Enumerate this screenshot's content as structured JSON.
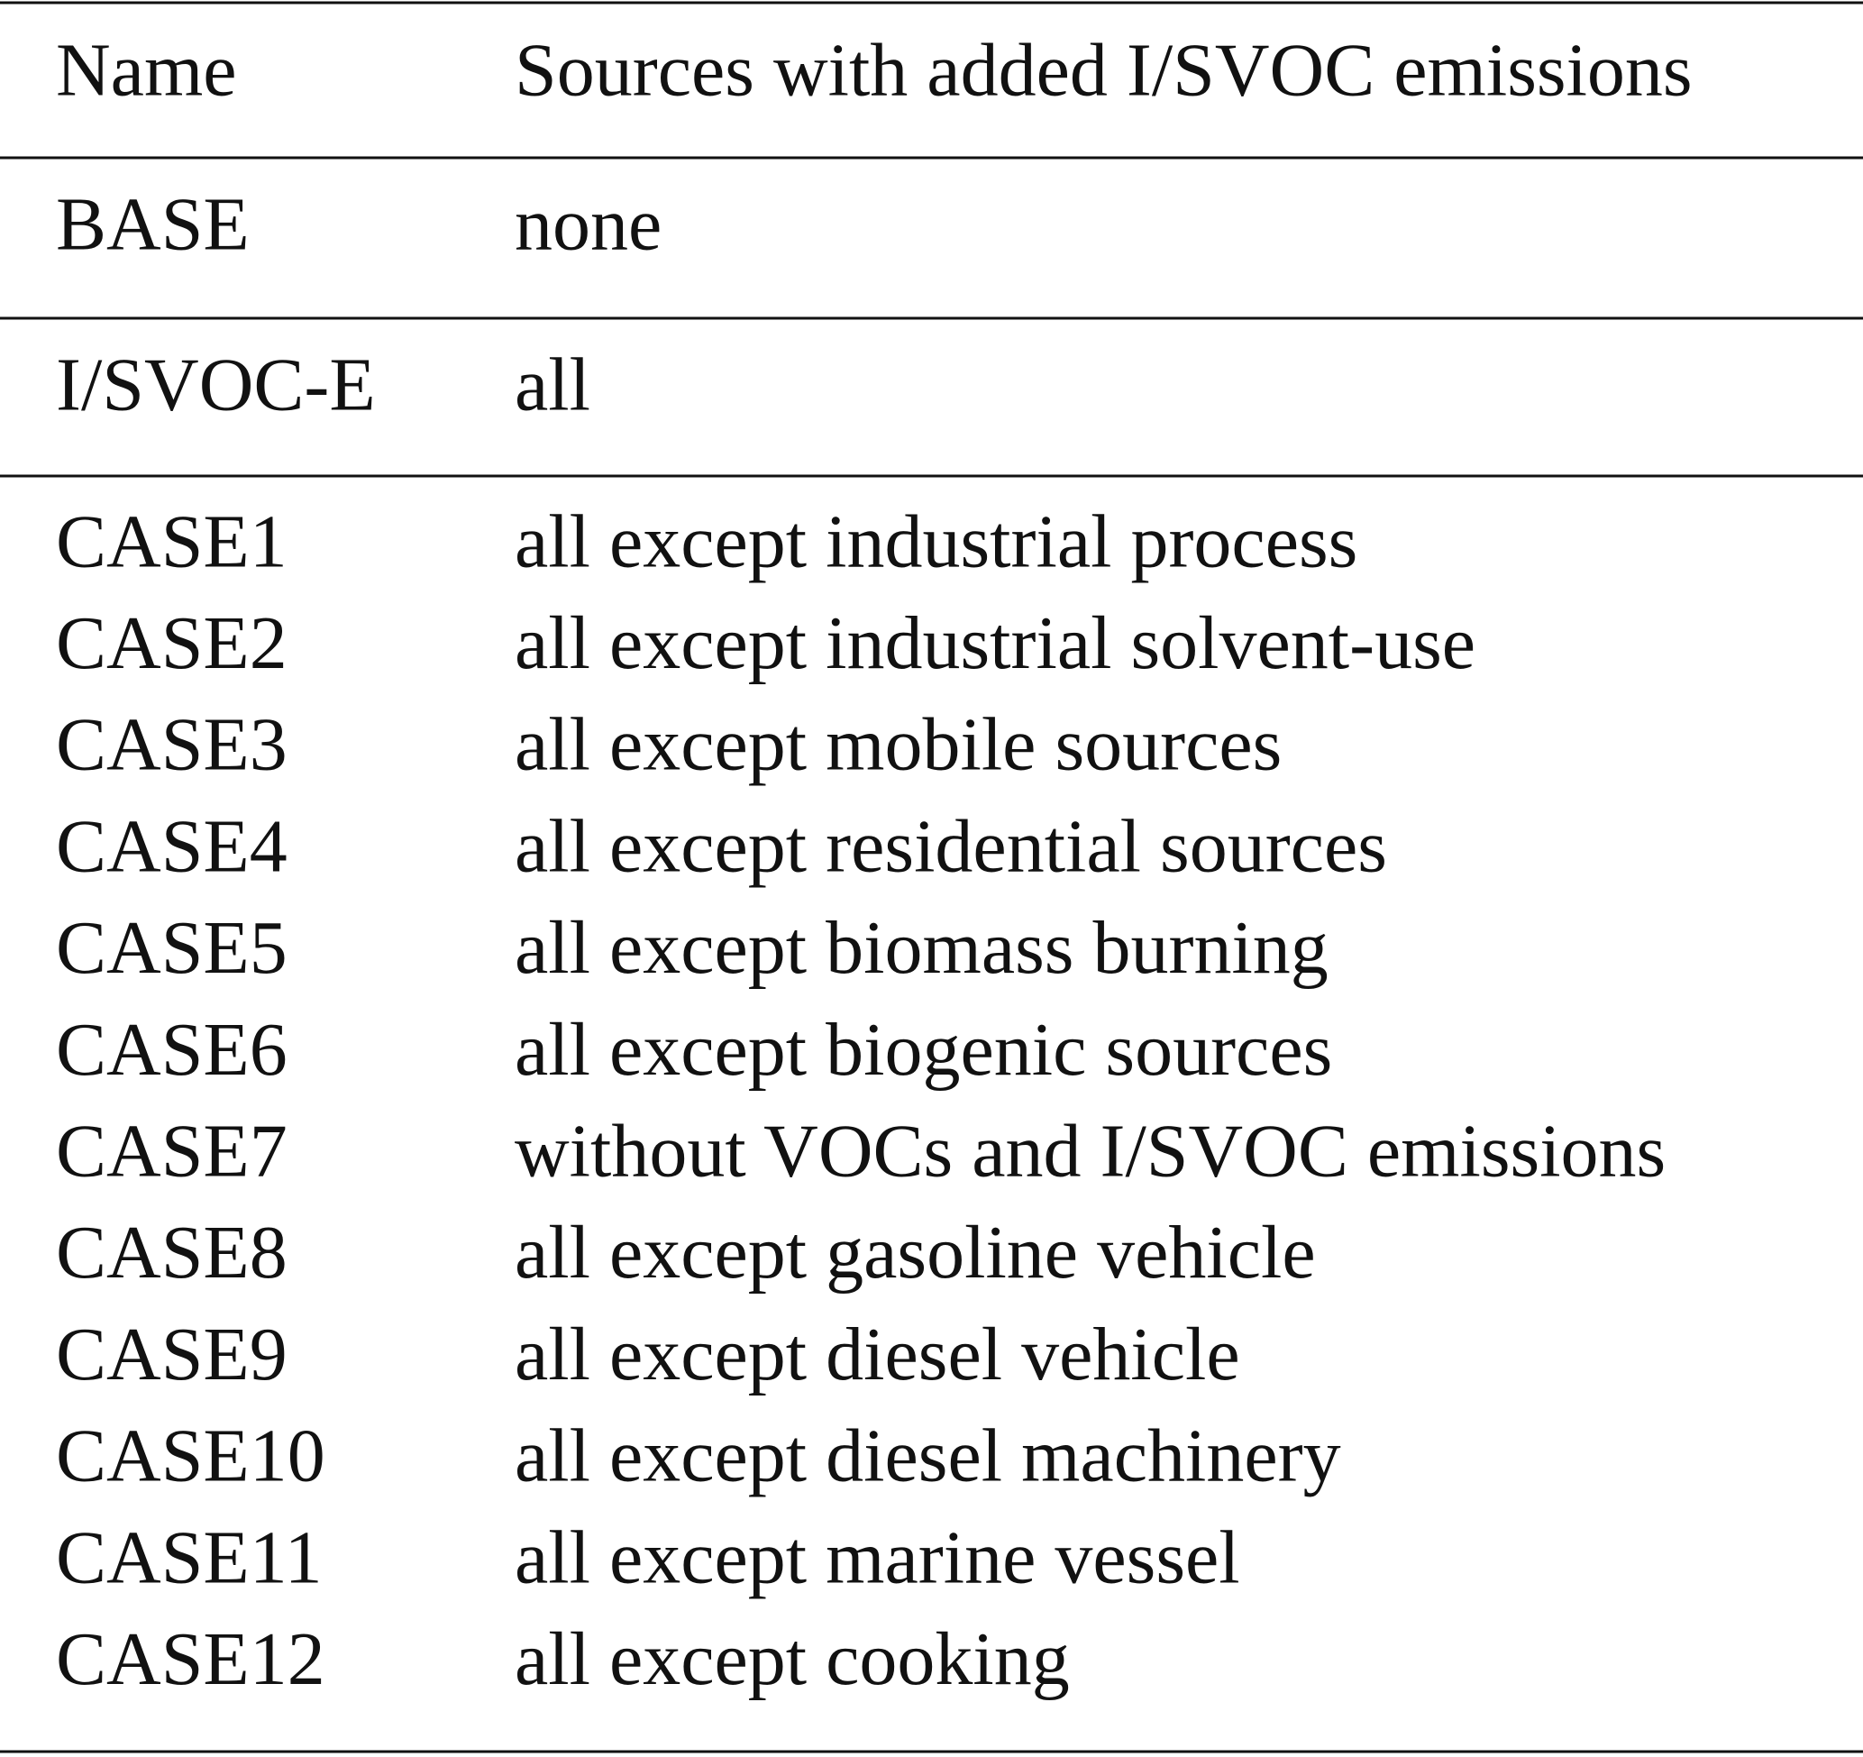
{
  "table": {
    "header": [
      "Name",
      "Sources with added I/SVOC emissions"
    ],
    "rows": [
      [
        "BASE",
        "none"
      ],
      [
        "I/SVOC-E",
        "all"
      ],
      [
        "CASE1",
        "all except industrial process"
      ],
      [
        "CASE2",
        "all except industrial solvent-use"
      ],
      [
        "CASE3",
        "all except mobile sources"
      ],
      [
        "CASE4",
        "all except residential sources"
      ],
      [
        "CASE5",
        "all except biomass burning"
      ],
      [
        "CASE6",
        "all except biogenic sources"
      ],
      [
        "CASE7",
        "without VOCs and I/SVOC emissions"
      ],
      [
        "CASE8",
        "all except gasoline vehicle"
      ],
      [
        "CASE9",
        "all except diesel vehicle"
      ],
      [
        "CASE10",
        "all except diesel machinery"
      ],
      [
        "CASE11",
        "all except marine vessel"
      ],
      [
        "CASE12",
        "all except cooking"
      ]
    ]
  }
}
